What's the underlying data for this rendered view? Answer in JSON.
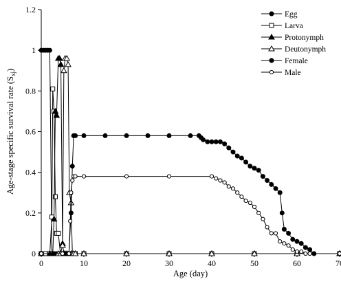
{
  "chart_data": {
    "type": "line",
    "xlabel": "Age (day)",
    "ylabel": "Age-stage specific survival rate (S",
    "ylabel_sub": "xj",
    "ylabel_close": ")",
    "xlim": [
      0,
      70
    ],
    "ylim": [
      0,
      1.2
    ],
    "x_ticks": [
      0,
      10,
      20,
      30,
      40,
      50,
      60,
      70
    ],
    "y_ticks": [
      0,
      0.2,
      0.4,
      0.6,
      0.8,
      1,
      1.2
    ],
    "x_tick_labels": [
      "0",
      "10",
      "20",
      "30",
      "40",
      "50",
      "60",
      "70"
    ],
    "y_tick_labels": [
      "0",
      "0.2",
      "0.4",
      "0.6",
      "0.8",
      "1",
      "1.2"
    ],
    "grid": false,
    "legend_position": "top-right",
    "series": [
      {
        "name": "Egg",
        "marker": "filled-circle",
        "x": [
          0,
          0.5,
          1,
          1.5,
          2,
          2.5,
          3,
          3.5,
          4,
          4.5,
          5,
          6,
          8,
          10,
          20,
          30,
          40,
          50,
          60,
          70
        ],
        "y": [
          1,
          1,
          1,
          1,
          1,
          0,
          0,
          0,
          0,
          0,
          0,
          0,
          0,
          0,
          0,
          0,
          0,
          0,
          0,
          0
        ]
      },
      {
        "name": "Larva",
        "marker": "open-square",
        "x": [
          0,
          1,
          2,
          2.5,
          2.7,
          3,
          3.3,
          3.6,
          4,
          4.5,
          5,
          6,
          8,
          10,
          20,
          30,
          40,
          50,
          60,
          70
        ],
        "y": [
          0,
          0,
          0,
          0.18,
          0.81,
          0.7,
          0.28,
          0.1,
          0.1,
          0,
          0,
          0,
          0,
          0,
          0,
          0,
          0,
          0,
          0,
          0
        ]
      },
      {
        "name": "Protonymph",
        "marker": "filled-triangle",
        "x": [
          0,
          2,
          2.7,
          3,
          3.3,
          3.6,
          4,
          4.3,
          4.6,
          5,
          5.3,
          5.6,
          6,
          6.5,
          7,
          8,
          10,
          20,
          30,
          40,
          50,
          60,
          70
        ],
        "y": [
          0,
          0,
          0,
          0.17,
          0.7,
          0.68,
          0.96,
          0.96,
          0.93,
          0.05,
          0,
          0,
          0,
          0,
          0,
          0,
          0,
          0,
          0,
          0,
          0,
          0,
          0
        ]
      },
      {
        "name": "Deutonymph",
        "marker": "open-triangle",
        "x": [
          0,
          4,
          4.5,
          5,
          5.3,
          5.6,
          6,
          6.3,
          6.6,
          7,
          7.3,
          7.6,
          8,
          10,
          20,
          30,
          40,
          50,
          60,
          70
        ],
        "y": [
          0,
          0,
          0,
          0.04,
          0.9,
          0.96,
          0.96,
          0.93,
          0.3,
          0.25,
          0,
          0,
          0,
          0,
          0,
          0,
          0,
          0,
          0,
          0
        ]
      },
      {
        "name": "Female",
        "marker": "filled-circle",
        "x": [
          0,
          5,
          6.5,
          7,
          7.3,
          7.6,
          8,
          10,
          15,
          20,
          25,
          30,
          35,
          37,
          37.5,
          38,
          39,
          40,
          41,
          42,
          43,
          44,
          45,
          46,
          47,
          48,
          49,
          50,
          51,
          52,
          53,
          54,
          55,
          56,
          56.5,
          57,
          58,
          59,
          60,
          61,
          62,
          63,
          64,
          70
        ],
        "y": [
          0,
          0,
          0,
          0.2,
          0.43,
          0.58,
          0.58,
          0.58,
          0.58,
          0.58,
          0.58,
          0.58,
          0.58,
          0.58,
          0.57,
          0.56,
          0.55,
          0.55,
          0.55,
          0.55,
          0.54,
          0.52,
          0.5,
          0.48,
          0.47,
          0.45,
          0.43,
          0.42,
          0.41,
          0.38,
          0.36,
          0.34,
          0.32,
          0.3,
          0.2,
          0.12,
          0.1,
          0.07,
          0.06,
          0.05,
          0.03,
          0.02,
          0,
          0
        ]
      },
      {
        "name": "Male",
        "marker": "open-circle",
        "x": [
          0,
          5,
          6.5,
          6.8,
          7,
          7.3,
          7.6,
          8,
          10,
          20,
          30,
          40,
          41,
          42,
          43,
          44,
          45,
          46,
          47,
          48,
          49,
          50,
          51,
          52,
          53,
          54,
          55,
          56,
          57,
          58,
          59,
          60,
          61,
          62,
          63,
          70
        ],
        "y": [
          0,
          0,
          0,
          0.16,
          0.3,
          0.36,
          0.38,
          0.38,
          0.38,
          0.38,
          0.38,
          0.38,
          0.37,
          0.36,
          0.35,
          0.33,
          0.32,
          0.3,
          0.28,
          0.26,
          0.25,
          0.23,
          0.2,
          0.17,
          0.13,
          0.1,
          0.1,
          0.06,
          0.05,
          0.04,
          0.02,
          0.01,
          0.01,
          0,
          0,
          0
        ]
      }
    ]
  }
}
